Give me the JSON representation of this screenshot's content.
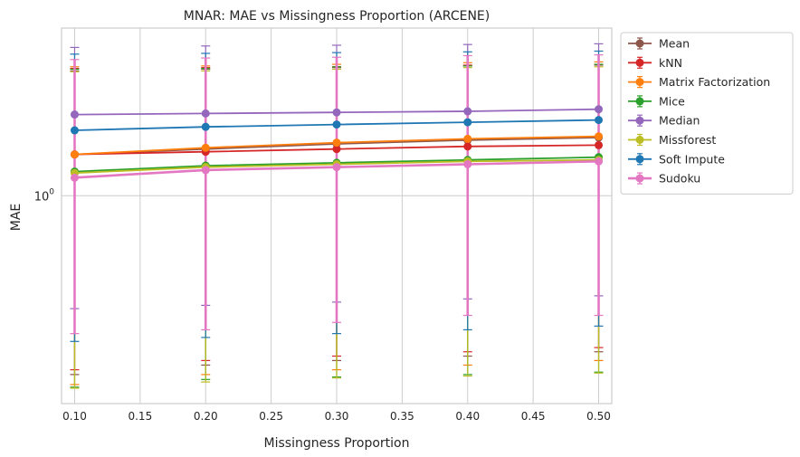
{
  "chart_data": {
    "type": "line",
    "title": "MNAR: MAE vs Missingness Proportion (ARCENE)",
    "xlabel": "Missingness Proportion",
    "ylabel": "MAE",
    "y_scale": "log",
    "xlim": [
      0.09,
      0.51
    ],
    "ylim": [
      0.3,
      2.64
    ],
    "grid": true,
    "legend_position": "outside-top-right",
    "x_ticks": [
      "0.10",
      "0.15",
      "0.20",
      "0.25",
      "0.30",
      "0.35",
      "0.40",
      "0.45",
      "0.50"
    ],
    "x_tick_values": [
      0.1,
      0.15,
      0.2,
      0.25,
      0.3,
      0.35,
      0.4,
      0.45,
      0.5
    ],
    "y_major_tick": {
      "value": 1,
      "base": "10",
      "exponent": "0"
    },
    "x": [
      0.1,
      0.2,
      0.3,
      0.4,
      0.5
    ],
    "series": [
      {
        "name": "Mean",
        "color": "#8c564b",
        "values": [
          1.27,
          1.31,
          1.35,
          1.38,
          1.4
        ],
        "err_low": [
          0.355,
          0.375,
          0.385,
          0.395,
          0.405
        ],
        "err_high": [
          2.06,
          2.08,
          2.1,
          2.12,
          2.13
        ]
      },
      {
        "name": "kNN",
        "color": "#d62728",
        "values": [
          1.27,
          1.29,
          1.31,
          1.33,
          1.34
        ],
        "err_low": [
          0.365,
          0.385,
          0.395,
          0.405,
          0.415
        ],
        "err_high": [
          2.09,
          2.1,
          2.11,
          2.13,
          2.14
        ]
      },
      {
        "name": "Matrix Factorization",
        "color": "#ff7f0e",
        "values": [
          1.27,
          1.32,
          1.36,
          1.39,
          1.41
        ],
        "err_low": [
          0.335,
          0.355,
          0.365,
          0.375,
          0.385
        ],
        "err_high": [
          2.11,
          2.12,
          2.14,
          2.16,
          2.17
        ]
      },
      {
        "name": "Mice",
        "color": "#2ca02c",
        "values": [
          1.15,
          1.19,
          1.21,
          1.23,
          1.25
        ],
        "err_low": [
          0.33,
          0.345,
          0.35,
          0.355,
          0.36
        ],
        "err_high": [
          2.08,
          2.09,
          2.11,
          2.12,
          2.14
        ]
      },
      {
        "name": "Median",
        "color": "#9467bd",
        "values": [
          1.6,
          1.61,
          1.62,
          1.63,
          1.65
        ],
        "err_low": [
          0.52,
          0.53,
          0.54,
          0.55,
          0.56
        ],
        "err_high": [
          2.36,
          2.38,
          2.39,
          2.4,
          2.41
        ]
      },
      {
        "name": "Missforest",
        "color": "#bcbd22",
        "values": [
          1.14,
          1.18,
          1.2,
          1.22,
          1.23
        ],
        "err_low": [
          0.328,
          0.34,
          0.348,
          0.352,
          0.358
        ],
        "err_high": [
          2.05,
          2.06,
          2.08,
          2.1,
          2.11
        ]
      },
      {
        "name": "Soft Impute",
        "color": "#1f77b4",
        "values": [
          1.46,
          1.49,
          1.51,
          1.53,
          1.55
        ],
        "err_low": [
          0.43,
          0.44,
          0.45,
          0.46,
          0.47
        ],
        "err_high": [
          2.27,
          2.28,
          2.29,
          2.3,
          2.31
        ]
      },
      {
        "name": "Sudoku",
        "color": "#e377c2",
        "values": [
          1.11,
          1.16,
          1.18,
          1.2,
          1.22
        ],
        "err_low": [
          0.45,
          0.46,
          0.48,
          0.5,
          0.5
        ],
        "err_high": [
          2.2,
          2.22,
          2.23,
          2.25,
          2.26
        ]
      }
    ]
  }
}
